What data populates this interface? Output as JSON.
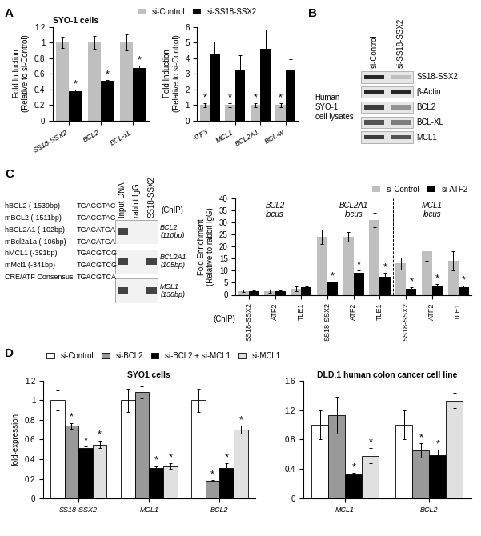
{
  "panel_labels": [
    "A",
    "B",
    "C",
    "D"
  ],
  "chart_data": [
    {
      "type": "bar",
      "title": "SYO-1 cells",
      "ylabel": "Fold Induction\n(Relative to si-Control)",
      "categories": [
        "SS18-SSX2",
        "BCL2",
        "BCL-xL"
      ],
      "series": [
        {
          "name": "si-Control",
          "color": "#bfbfbf",
          "values": [
            1,
            1,
            1
          ],
          "errors": [
            0.07,
            0.08,
            0.1
          ],
          "significant": [
            false,
            false,
            false
          ]
        },
        {
          "name": "si-SS18-SSX2",
          "color": "#000000",
          "values": [
            0.38,
            0.51,
            0.67
          ],
          "errors": [
            0.02,
            0.01,
            0.03
          ],
          "significant": [
            true,
            true,
            true
          ]
        }
      ],
      "ylim": [
        0,
        1.2
      ],
      "yticks": [
        0,
        0.2,
        0.4,
        0.6,
        0.8,
        1,
        1.2
      ],
      "legend": "lower left",
      "annotation": "*"
    },
    {
      "type": "bar",
      "ylabel": "Fold Induction\n(Relative to si-Control)",
      "categories": [
        "ATF3",
        "MCL1",
        "BCL2A1",
        "BCL-w"
      ],
      "series": [
        {
          "name": "si-Control",
          "color": "#bfbfbf",
          "values": [
            1,
            1,
            1,
            1
          ],
          "errors": [
            0.12,
            0.12,
            0.12,
            0.12
          ],
          "significant": [
            true,
            true,
            true,
            true
          ]
        },
        {
          "name": "si-SS18-SSX2",
          "color": "#000000",
          "values": [
            4.3,
            3.2,
            4.6,
            3.2
          ],
          "errors": [
            0.75,
            1.0,
            1.2,
            0.75
          ],
          "significant": [
            false,
            false,
            false,
            false
          ]
        }
      ],
      "ylim": [
        0,
        6
      ],
      "yticks": [
        0,
        1,
        2,
        3,
        4,
        5,
        6
      ],
      "annotation": "*"
    },
    {
      "type": "bar",
      "ylabel": "Fold Enrichment\n(Relative to rabbit IgG)",
      "categories": [
        "SS18-SSX2",
        "ATF2",
        "TLE1",
        "SS18-SSX2",
        "ATF2",
        "TLE1",
        "SS18-SSX2",
        "ATF2",
        "TLE1"
      ],
      "groups": [
        {
          "label": "BCL2\nlocus",
          "size": 3
        },
        {
          "label": "BCL2A1\nlocus",
          "size": 3
        },
        {
          "label": "MCL1\nlocus",
          "size": 3
        }
      ],
      "axis_note": "(ChIP)",
      "series": [
        {
          "name": "si-Control",
          "color": "#bfbfbf",
          "values": [
            1.5,
            1.5,
            2.5,
            24,
            24,
            31,
            13,
            18,
            14
          ],
          "errors": [
            0.5,
            0.6,
            1.0,
            3,
            2,
            3,
            2.5,
            4,
            4
          ],
          "significant": [
            false,
            false,
            false,
            false,
            false,
            false,
            false,
            false,
            false
          ]
        },
        {
          "name": "si-ATF2",
          "color": "#000000",
          "values": [
            1.5,
            1.5,
            3,
            5,
            9,
            7.5,
            2.5,
            3.5,
            3
          ],
          "errors": [
            0.3,
            0.3,
            0.5,
            0.5,
            1,
            1.5,
            0.5,
            1,
            0.8
          ],
          "significant": [
            false,
            false,
            false,
            true,
            true,
            true,
            true,
            true,
            true
          ]
        }
      ],
      "ylim": [
        0,
        40
      ],
      "yticks": [
        0,
        5,
        10,
        15,
        20,
        25,
        30,
        35,
        40
      ],
      "legend": "lower right",
      "annotation": "*"
    },
    {
      "type": "bar",
      "title": "SYO1 cells",
      "ylabel": "fold-expression",
      "categories": [
        "SS18-SSX2",
        "MCL1",
        "BCL2"
      ],
      "series": [
        {
          "name": "si-Control",
          "color": "#ffffff",
          "values": [
            1,
            1,
            1
          ],
          "errors": [
            0.1,
            0.12,
            0.12
          ],
          "significant": [
            false,
            false,
            false
          ]
        },
        {
          "name": "si-BCL2",
          "color": "#999999",
          "values": [
            0.74,
            1.08,
            0.18
          ],
          "errors": [
            0.03,
            0.06,
            0.01
          ],
          "significant": [
            true,
            false,
            true
          ]
        },
        {
          "name": "si-BCL2 + si-MCL1",
          "color": "#000000",
          "values": [
            0.51,
            0.31,
            0.31
          ],
          "errors": [
            0.02,
            0.02,
            0.05
          ],
          "significant": [
            true,
            true,
            true
          ]
        },
        {
          "name": "si-MCL1",
          "color": "#e0e0e0",
          "values": [
            0.55,
            0.33,
            0.7
          ],
          "errors": [
            0.04,
            0.03,
            0.04
          ],
          "significant": [
            true,
            true,
            true
          ]
        }
      ],
      "ylim": [
        0,
        1.2
      ],
      "yticks": [
        0,
        0.2,
        0.4,
        0.6,
        0.8,
        1,
        1.2
      ],
      "legend": "lower left",
      "annotation": "*"
    },
    {
      "type": "bar",
      "title": "DLD.1 human colon cancer cell line",
      "categories": [
        "MCL1",
        "BCL2"
      ],
      "series": [
        {
          "name": "si-Control",
          "color": "#ffffff",
          "values": [
            1,
            1
          ],
          "errors": [
            0.2,
            0.2
          ],
          "significant": [
            false,
            false
          ]
        },
        {
          "name": "si-BCL2",
          "color": "#999999",
          "values": [
            1.13,
            0.65
          ],
          "errors": [
            0.25,
            0.1
          ],
          "significant": [
            false,
            true
          ]
        },
        {
          "name": "si-BCL2 + si-MCL1",
          "color": "#000000",
          "values": [
            0.33,
            0.59
          ],
          "errors": [
            0.02,
            0.07
          ],
          "significant": [
            true,
            true
          ]
        },
        {
          "name": "si-MCL1",
          "color": "#e0e0e0",
          "values": [
            0.58,
            1.33
          ],
          "errors": [
            0.1,
            0.1
          ],
          "significant": [
            true,
            false
          ]
        }
      ],
      "ylim": [
        0,
        1.6
      ],
      "yticks": [
        0,
        0.4,
        0.8,
        1.2,
        1.6
      ],
      "annotation": "*"
    }
  ],
  "western_blot": {
    "sample_label": "Human\nSYO-1\ncell lysates",
    "lanes": [
      "si-Control",
      "si-SS18-SSX2"
    ],
    "rows": [
      {
        "label": "SS18-SSX2",
        "bands": [
          1,
          0.3
        ]
      },
      {
        "label": "β-Actin",
        "bands": [
          1,
          1
        ]
      },
      {
        "label": "BCL2",
        "bands": [
          0.9,
          0.5
        ]
      },
      {
        "label": "BCL-XL",
        "bands": [
          0.8,
          0.6
        ]
      },
      {
        "label": "MCL1",
        "bands": [
          0.9,
          0.8
        ]
      }
    ]
  },
  "chip_gel": {
    "lanes": [
      "Input DNA",
      "rabbit IgG",
      "SS18-SSX2"
    ],
    "note": "(ChIP)",
    "rows": [
      {
        "label": "BCL2\n(110bp)",
        "bands": [
          true,
          false,
          false
        ]
      },
      {
        "label": "BCL2A1\n(105bp)",
        "bands": [
          true,
          false,
          true
        ]
      },
      {
        "label": "MCL1\n(138bp)",
        "bands": [
          true,
          false,
          true
        ]
      }
    ]
  },
  "sequences": [
    [
      "hBCL2 (-1539bp)",
      "TGACGTAC"
    ],
    [
      "mBCL2 (-1511bp)",
      "TGACGTAC"
    ],
    [
      "hBCL2A1 (-102bp)",
      "TGACATGA"
    ],
    [
      "mBcl2a1a (-106bp)",
      "TGACATGA"
    ],
    [
      "hMCL1 (-391bp)",
      "TGACGTCG"
    ],
    [
      "mMcl1 (-341bp)",
      "TGACGTCG"
    ],
    [
      "CRE/ATF Consensus",
      "TGACGTCA"
    ]
  ]
}
